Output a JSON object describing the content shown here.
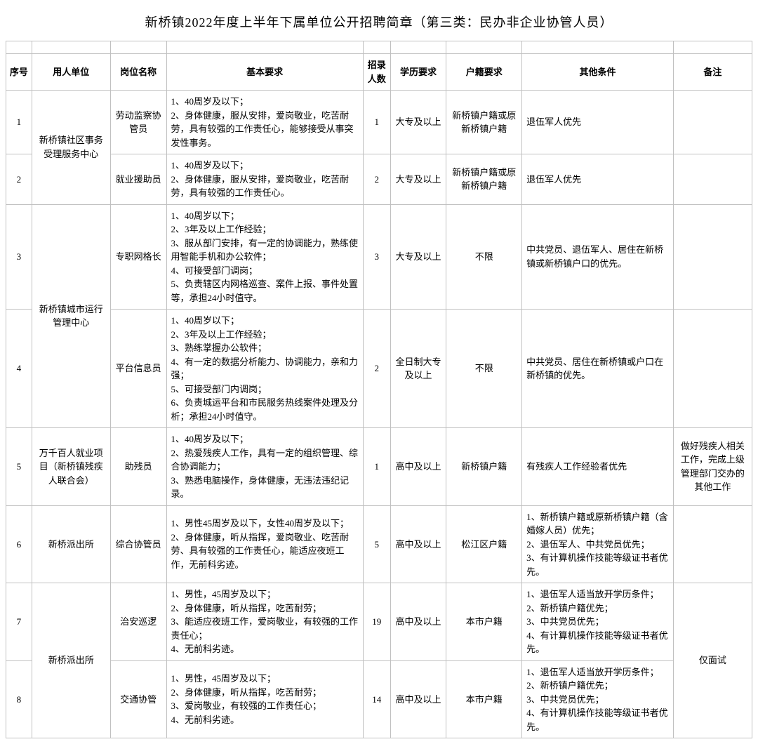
{
  "title": "新桥镇2022年度上半年下属单位公开招聘简章（第三类：民办非企业协管人员）",
  "headers": {
    "idx": "序号",
    "unit": "用人单位",
    "pos": "岗位名称",
    "req": "基本要求",
    "num": "招录人数",
    "edu": "学历要求",
    "hukou": "户籍要求",
    "other": "其他条件",
    "note": "备注"
  },
  "rows": [
    {
      "idx": "1",
      "unit": "新桥镇社区事务受理服务中心",
      "unit_rowspan": 2,
      "pos": "劳动监察协管员",
      "req": "1、40周岁及以下；\n2、身体健康，服从安排，爱岗敬业，吃苦耐劳，具有较强的工作责任心，能够接受从事突发性事务。",
      "num": "1",
      "edu": "大专及以上",
      "hukou": "新桥镇户籍或原新桥镇户籍",
      "other": "退伍军人优先",
      "note": ""
    },
    {
      "idx": "2",
      "pos": "就业援助员",
      "req": "1、40周岁及以下；\n2、身体健康，服从安排，爱岗敬业，吃苦耐劳，具有较强的工作责任心。",
      "num": "2",
      "edu": "大专及以上",
      "hukou": "新桥镇户籍或原新桥镇户籍",
      "other": "退伍军人优先",
      "note": ""
    },
    {
      "idx": "3",
      "unit": "新桥镇城市运行管理中心",
      "unit_rowspan": 2,
      "pos": "专职网格长",
      "req": "1、40周岁以下；\n2、3年及以上工作经验；\n3、服从部门安排，有一定的协调能力，熟练使用智能手机和办公软件；\n4、可接受部门调岗；\n5、负责辖区内网格巡查、案件上报、事件处置等，承担24小时值守。",
      "num": "3",
      "edu": "大专及以上",
      "hukou": "不限",
      "other": "中共党员、退伍军人、居住在新桥镇或新桥镇户口的优先。",
      "note": ""
    },
    {
      "idx": "4",
      "pos": "平台信息员",
      "req": "1、40周岁以下；\n2、3年及以上工作经验；\n3、熟练掌握办公软件；\n4、有一定的数据分析能力、协调能力，亲和力强；\n5、可接受部门内调岗；\n6、负责城运平台和市民服务热线案件处理及分析；承担24小时值守。",
      "num": "2",
      "edu": "全日制大专及以上",
      "hukou": "不限",
      "other": "中共党员、居住在新桥镇或户口在新桥镇的优先。",
      "note": ""
    },
    {
      "idx": "5",
      "unit": "万千百人就业项目（新桥镇残疾人联合会）",
      "unit_rowspan": 1,
      "pos": "助残员",
      "req": "1、40周岁及以下；\n2、热爱残疾人工作，具有一定的组织管理、综合协调能力；\n3、熟悉电脑操作，身体健康，无违法违纪记录。",
      "num": "1",
      "edu": "高中及以上",
      "hukou": "新桥镇户籍",
      "other": "有残疾人工作经验者优先",
      "note": "做好残疾人相关工作，完成上级管理部门交办的其他工作"
    },
    {
      "idx": "6",
      "unit": "新桥派出所",
      "unit_rowspan": 1,
      "pos": "综合协管员",
      "req": "1、男性45周岁及以下，女性40周岁及以下；\n2、身体健康，听从指挥，爱岗敬业、吃苦耐劳、具有较强的工作责任心，能适应夜班工作，无前科劣迹。",
      "num": "5",
      "edu": "高中及以上",
      "hukou": "松江区户籍",
      "other": "1、新桥镇户籍或原新桥镇户籍（含婚嫁人员）优先；\n2、退伍军人、中共党员优先；\n3、有计算机操作技能等级证书者优先。",
      "note": ""
    },
    {
      "idx": "7",
      "unit": "新桥派出所",
      "unit_rowspan": 2,
      "pos": "治安巡逻",
      "req": "1、男性，45周岁及以下；\n2、身体健康，听从指挥，吃苦耐劳；\n3、能适应夜班工作，爱岗敬业，有较强的工作责任心；\n4、无前科劣迹。",
      "num": "19",
      "edu": "高中及以上",
      "hukou": "本市户籍",
      "other": "1、退伍军人适当放开学历条件；\n2、新桥镇户籍优先；\n3、中共党员优先；\n4、有计算机操作技能等级证书者优先。",
      "note": "仅面试",
      "note_rowspan": 2
    },
    {
      "idx": "8",
      "pos": "交通协管",
      "req": "1、男性，45周岁及以下；\n2、身体健康，听从指挥，吃苦耐劳；\n3、爱岗敬业，有较强的工作责任心；\n4、无前科劣迹。",
      "num": "14",
      "edu": "高中及以上",
      "hukou": "本市户籍",
      "other": "1、退伍军人适当放开学历条件；\n2、新桥镇户籍优先；\n3、中共党员优先；\n4、有计算机操作技能等级证书者优先。"
    }
  ],
  "style": {
    "font_family": "SimSun",
    "base_fontsize": 13,
    "title_fontsize": 18,
    "border_color": "#c0c0c0",
    "text_color": "#000000",
    "background": "#ffffff"
  }
}
